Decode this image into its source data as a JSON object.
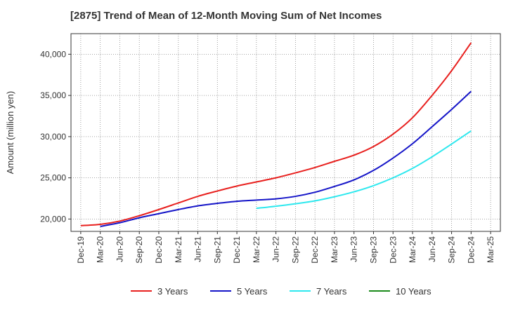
{
  "chart_data": {
    "type": "line",
    "title": "[2875]  Trend of Mean of 12-Month Moving Sum of Net Incomes",
    "xlabel": "",
    "ylabel": "Amount (million yen)",
    "ylim": [
      18500,
      42500
    ],
    "y_ticks": [
      20000,
      25000,
      30000,
      35000,
      40000
    ],
    "y_tick_labels": [
      "20,000",
      "25,000",
      "30,000",
      "35,000",
      "40,000"
    ],
    "x_ticks": [
      "Dec-19",
      "Mar-20",
      "Jun-20",
      "Sep-20",
      "Dec-20",
      "Mar-21",
      "Jun-21",
      "Sep-21",
      "Dec-21",
      "Mar-22",
      "Jun-22",
      "Sep-22",
      "Dec-22",
      "Mar-23",
      "Jun-23",
      "Sep-23",
      "Dec-23",
      "Mar-24",
      "Jun-24",
      "Sep-24",
      "Dec-24",
      "Mar-25"
    ],
    "grid": true,
    "legend_position": "bottom",
    "series": [
      {
        "name": "3 Years",
        "color": "#e8201e",
        "x": [
          "Dec-19",
          "Mar-20",
          "Jun-20",
          "Sep-20",
          "Dec-20",
          "Mar-21",
          "Jun-21",
          "Sep-21",
          "Dec-21",
          "Mar-22",
          "Jun-22",
          "Sep-22",
          "Dec-22",
          "Mar-23",
          "Jun-23",
          "Sep-23",
          "Dec-23",
          "Mar-24",
          "Jun-24",
          "Sep-24",
          "Dec-24"
        ],
        "values": [
          19200,
          19350,
          19750,
          20400,
          21150,
          21950,
          22750,
          23400,
          24000,
          24500,
          25000,
          25600,
          26250,
          27000,
          27750,
          28800,
          30300,
          32300,
          35000,
          38000,
          41400
        ]
      },
      {
        "name": "5 Years",
        "color": "#1515c8",
        "x": [
          "Mar-20",
          "Jun-20",
          "Sep-20",
          "Dec-20",
          "Mar-21",
          "Jun-21",
          "Sep-21",
          "Dec-21",
          "Mar-22",
          "Jun-22",
          "Sep-22",
          "Dec-22",
          "Mar-23",
          "Jun-23",
          "Sep-23",
          "Dec-23",
          "Mar-24",
          "Jun-24",
          "Sep-24",
          "Dec-24"
        ],
        "values": [
          19100,
          19550,
          20150,
          20650,
          21150,
          21600,
          21900,
          22150,
          22300,
          22450,
          22750,
          23250,
          23950,
          24750,
          25900,
          27400,
          29150,
          31200,
          33300,
          35500
        ]
      },
      {
        "name": "7 Years",
        "color": "#2ee8ee",
        "x": [
          "Mar-22",
          "Jun-22",
          "Sep-22",
          "Dec-22",
          "Mar-23",
          "Jun-23",
          "Sep-23",
          "Dec-23",
          "Mar-24",
          "Jun-24",
          "Sep-24",
          "Dec-24"
        ],
        "values": [
          21300,
          21550,
          21850,
          22200,
          22700,
          23300,
          24050,
          25000,
          26150,
          27550,
          29100,
          30700
        ]
      },
      {
        "name": "10 Years",
        "color": "#1a8a1a",
        "x": [],
        "values": []
      }
    ]
  }
}
